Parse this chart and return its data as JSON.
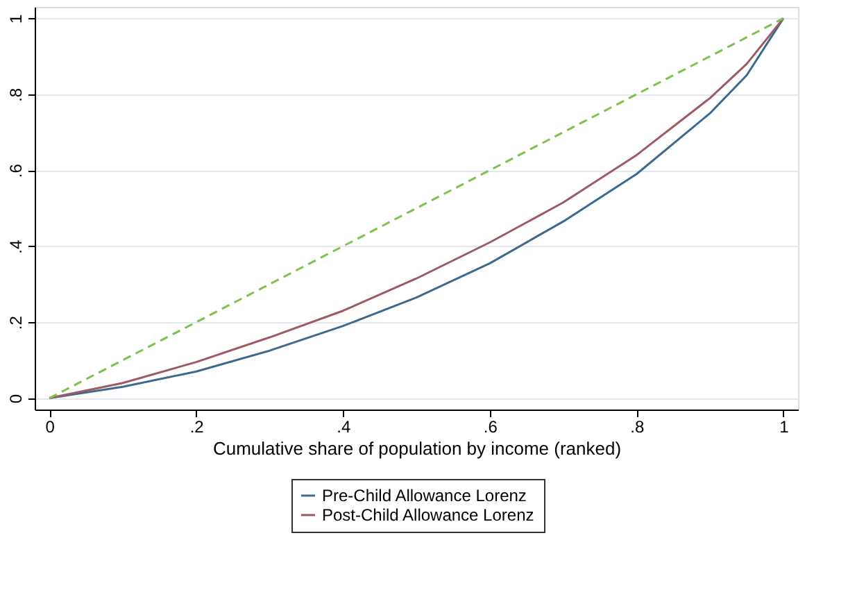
{
  "chart_data": {
    "type": "line",
    "xlabel": "Cumulative share of population by income (ranked)",
    "x": [
      0,
      0.1,
      0.2,
      0.3,
      0.4,
      0.5,
      0.6,
      0.7,
      0.8,
      0.9,
      0.95,
      1
    ],
    "series": [
      {
        "name": "Pre-Child Allowance Lorenz",
        "color": "#3b6a8f",
        "values": [
          0,
          0.03,
          0.07,
          0.125,
          0.19,
          0.265,
          0.355,
          0.465,
          0.59,
          0.75,
          0.85,
          1
        ]
      },
      {
        "name": "Post-Child Allowance Lorenz",
        "color": "#9e5a63",
        "values": [
          0,
          0.04,
          0.095,
          0.16,
          0.23,
          0.315,
          0.41,
          0.515,
          0.64,
          0.79,
          0.88,
          1
        ]
      },
      {
        "color": "#7cc34a",
        "line_style": "dashed",
        "x": [
          0,
          1
        ],
        "values": [
          0,
          1
        ]
      }
    ],
    "xlim": [
      -0.02,
      1.02
    ],
    "ylim": [
      -0.03,
      1.03
    ],
    "xticks": [
      0,
      {
        "value": 0.2,
        "label": ".2"
      },
      {
        "value": 0.4,
        "label": ".4"
      },
      {
        "value": 0.6,
        "label": ".6"
      },
      {
        "value": 0.8,
        "label": ".8"
      },
      1
    ],
    "yticks": [
      0,
      {
        "value": 0.2,
        "label": ".2"
      },
      {
        "value": 0.4,
        "label": ".4"
      },
      {
        "value": 0.6,
        "label": ".6"
      },
      {
        "value": 0.8,
        "label": ".8"
      },
      1
    ],
    "grid": "y",
    "legend": "bottom",
    "line_style": "solid",
    "marker": "none"
  }
}
